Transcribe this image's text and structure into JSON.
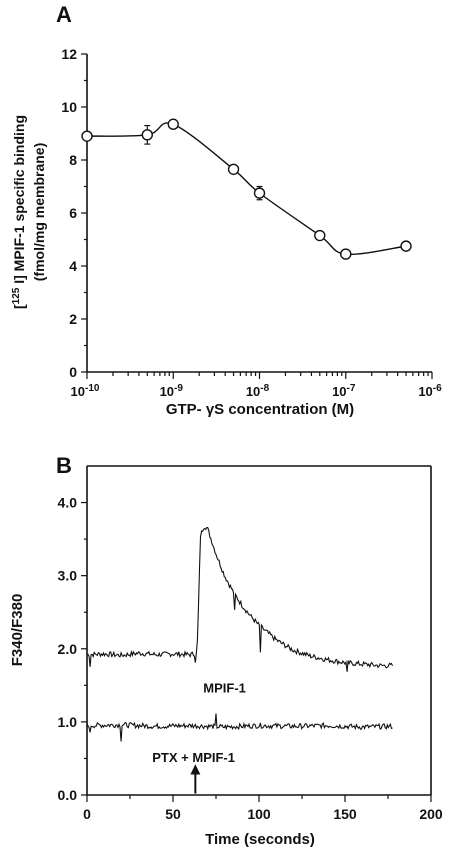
{
  "panels": {
    "a": {
      "letter": "A"
    },
    "b": {
      "letter": "B"
    }
  },
  "chart_data": [
    {
      "type": "line",
      "panel": "A",
      "xscale": "log",
      "xlim": [
        1e-10,
        1e-06
      ],
      "ylim": [
        0,
        12
      ],
      "x_ticks": [
        1e-10,
        1e-09,
        1e-08,
        1e-07,
        1e-06
      ],
      "x_tick_labels": [
        {
          "base": "10",
          "exp": "-10"
        },
        {
          "base": "10",
          "exp": "-9"
        },
        {
          "base": "10",
          "exp": "-8"
        },
        {
          "base": "10",
          "exp": "-7"
        },
        {
          "base": "10",
          "exp": "-6"
        }
      ],
      "y_ticks": [
        0,
        2,
        4,
        6,
        8,
        10,
        12
      ],
      "y_tick_labels": [
        "0",
        "2",
        "4",
        "6",
        "8",
        "10",
        "12"
      ],
      "xlabel": "GTP- γS concentration (M)",
      "ylabel": {
        "line1_open": "[",
        "line1_sup": "125",
        "line1_rest": " I] MPIF-1 specific binding",
        "line2": "(fmol/mg membrane)"
      },
      "series": [
        {
          "x": [
            1e-10,
            5e-10,
            1e-09,
            5e-09,
            1e-08,
            5e-08,
            1e-07,
            5e-07
          ],
          "y": [
            8.9,
            8.95,
            9.35,
            7.65,
            6.75,
            5.15,
            4.45,
            4.75
          ],
          "err": [
            0.15,
            0.35,
            0.15,
            0.15,
            0.25,
            0.15,
            0.12,
            0.12
          ]
        }
      ],
      "grid": false
    },
    {
      "type": "line",
      "panel": "B",
      "xlim": [
        0,
        200
      ],
      "ylim": [
        0,
        4.5
      ],
      "x_ticks": [
        0,
        50,
        100,
        150,
        200
      ],
      "x_tick_labels": [
        "0",
        "50",
        "100",
        "150",
        "200"
      ],
      "y_ticks": [
        0,
        1,
        2,
        3,
        4
      ],
      "y_tick_labels": [
        "0.0",
        "1.0",
        "2.0",
        "3.0",
        "4.0"
      ],
      "xlabel": "Time  (seconds)",
      "ylabel": "F340/F380",
      "series": [
        {
          "label": "MPIF-1",
          "x": [
            0,
            10,
            20,
            30,
            40,
            50,
            60,
            64,
            66,
            68,
            70,
            75,
            80,
            85,
            90,
            95,
            100,
            110,
            120,
            130,
            140,
            150,
            160,
            170,
            178
          ],
          "y": [
            1.92,
            1.93,
            1.91,
            1.94,
            1.92,
            1.93,
            1.92,
            1.94,
            3.55,
            3.68,
            3.65,
            3.3,
            3.0,
            2.78,
            2.6,
            2.45,
            2.32,
            2.12,
            1.98,
            1.9,
            1.85,
            1.81,
            1.79,
            1.77,
            1.77
          ]
        },
        {
          "label": "PTX + MPIF-1",
          "x": [
            0,
            20,
            40,
            60,
            80,
            100,
            120,
            140,
            160,
            178
          ],
          "y": [
            0.95,
            0.96,
            0.94,
            0.95,
            0.93,
            0.95,
            0.94,
            0.95,
            0.93,
            0.94
          ]
        }
      ],
      "annotations": [
        {
          "text": "MPIF-1",
          "x": 80,
          "y": 1.4
        },
        {
          "text": "PTX  +  MPIF-1",
          "x": 62,
          "y": 0.45,
          "arrow_at_x": 63
        }
      ],
      "grid": false
    }
  ]
}
